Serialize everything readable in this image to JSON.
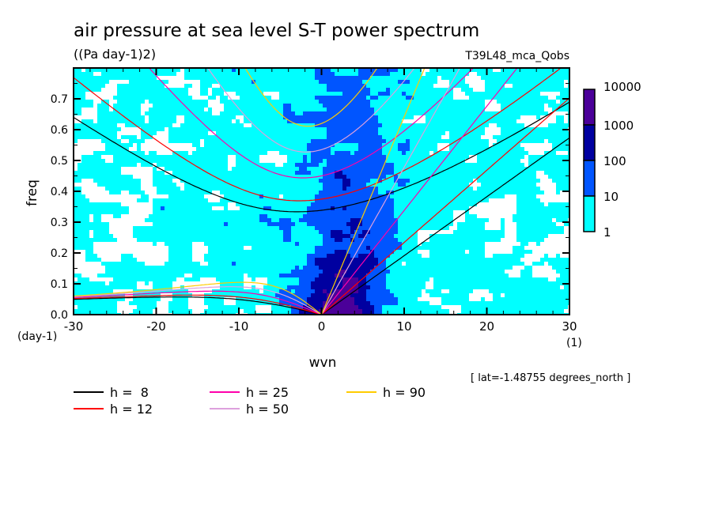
{
  "chart_data": {
    "type": "heatmap",
    "title": "air pressure at sea level S-T power spectrum",
    "units": "((Pa day-1)2)",
    "dataset": "T39L48_mca_Qobs",
    "xlabel": "wvn",
    "xunits": "(1)",
    "ylabel": "freq",
    "yunits": "(day-1)",
    "xlim": [
      -30,
      30
    ],
    "ylim": [
      0,
      0.8
    ],
    "xticks": [
      "-30",
      "-20",
      "-10",
      "0",
      "10",
      "20",
      "30"
    ],
    "yticks": [
      "0.0",
      "0.1",
      "0.2",
      "0.3",
      "0.4",
      "0.5",
      "0.6",
      "0.7"
    ],
    "annotation": "[ lat=-1.48755 degrees_north ]",
    "colorbar": {
      "levels": [
        "1",
        "10",
        "100",
        "1000",
        "10000"
      ],
      "colors": [
        "#00ffff",
        "#0055ff",
        "#0000a0",
        "#4b0099"
      ]
    },
    "dispersion_curves": [
      {
        "label": "h =  8",
        "h": 8,
        "color": "#000000"
      },
      {
        "label": "h = 12",
        "h": 12,
        "color": "#ff0000"
      },
      {
        "label": "h = 25",
        "h": 25,
        "color": "#ff00aa"
      },
      {
        "label": "h = 50",
        "h": 50,
        "color": "#dda0dd"
      },
      {
        "label": "h = 90",
        "h": 90,
        "color": "#ffcc00"
      }
    ]
  }
}
